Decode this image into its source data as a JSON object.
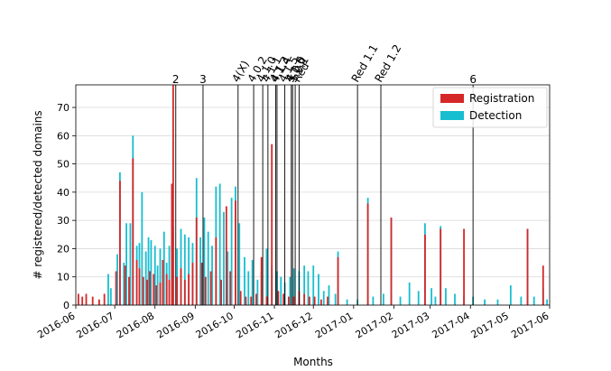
{
  "chart_data": {
    "type": "bar",
    "xlabel": "Months",
    "ylabel": "# registered/detected domains",
    "xlim": [
      "2016-06-01",
      "2017-06-01"
    ],
    "ylim": [
      0,
      78
    ],
    "grid": "horizontal",
    "legend_position": "top-right",
    "colors": {
      "Registration": "#d62728",
      "Detection": "#17becf"
    },
    "x_ticks": [
      "2016-06",
      "2016-07",
      "2016-08",
      "2016-09",
      "2016-10",
      "2016-11",
      "2016-12",
      "2017-01",
      "2017-02",
      "2017-03",
      "2017-04",
      "2017-05",
      "2017-06"
    ],
    "y_ticks": [
      0,
      10,
      20,
      30,
      40,
      50,
      60,
      70
    ],
    "series": [
      {
        "name": "Detection",
        "points": [
          [
            "2016-06-26",
            11
          ],
          [
            "2016-06-28",
            6
          ],
          [
            "2016-07-03",
            18
          ],
          [
            "2016-07-05",
            47
          ],
          [
            "2016-07-08",
            15
          ],
          [
            "2016-07-10",
            29
          ],
          [
            "2016-07-13",
            29
          ],
          [
            "2016-07-15",
            60
          ],
          [
            "2016-07-18",
            21
          ],
          [
            "2016-07-20",
            22
          ],
          [
            "2016-07-22",
            40
          ],
          [
            "2016-07-25",
            19
          ],
          [
            "2016-07-27",
            24
          ],
          [
            "2016-07-29",
            23
          ],
          [
            "2016-08-01",
            21
          ],
          [
            "2016-08-03",
            14
          ],
          [
            "2016-08-05",
            20
          ],
          [
            "2016-08-08",
            26
          ],
          [
            "2016-08-10",
            15
          ],
          [
            "2016-08-12",
            21
          ],
          [
            "2016-08-15",
            28
          ],
          [
            "2016-08-18",
            20
          ],
          [
            "2016-08-21",
            27
          ],
          [
            "2016-08-24",
            25
          ],
          [
            "2016-08-27",
            24
          ],
          [
            "2016-08-30",
            22
          ],
          [
            "2016-09-02",
            45
          ],
          [
            "2016-09-05",
            24
          ],
          [
            "2016-09-08",
            31
          ],
          [
            "2016-09-11",
            26
          ],
          [
            "2016-09-14",
            21
          ],
          [
            "2016-09-17",
            42
          ],
          [
            "2016-09-20",
            43
          ],
          [
            "2016-09-23",
            33
          ],
          [
            "2016-09-26",
            19
          ],
          [
            "2016-09-29",
            38
          ],
          [
            "2016-10-02",
            42
          ],
          [
            "2016-10-05",
            29
          ],
          [
            "2016-10-09",
            17
          ],
          [
            "2016-10-12",
            12
          ],
          [
            "2016-10-15",
            16
          ],
          [
            "2016-10-19",
            9
          ],
          [
            "2016-10-22",
            12
          ],
          [
            "2016-10-26",
            20
          ],
          [
            "2016-10-30",
            14
          ],
          [
            "2016-11-03",
            12
          ],
          [
            "2016-11-06",
            10
          ],
          [
            "2016-11-09",
            8
          ],
          [
            "2016-11-13",
            10
          ],
          [
            "2016-11-16",
            13
          ],
          [
            "2016-11-20",
            12
          ],
          [
            "2016-11-24",
            14
          ],
          [
            "2016-11-27",
            12
          ],
          [
            "2016-12-01",
            14
          ],
          [
            "2016-12-05",
            11
          ],
          [
            "2016-12-09",
            5
          ],
          [
            "2016-12-13",
            7
          ],
          [
            "2016-12-18",
            4
          ],
          [
            "2016-12-20",
            19
          ],
          [
            "2016-12-27",
            2
          ],
          [
            "2017-01-04",
            2
          ],
          [
            "2017-01-12",
            38
          ],
          [
            "2017-01-16",
            3
          ],
          [
            "2017-01-24",
            4
          ],
          [
            "2017-01-30",
            31
          ],
          [
            "2017-02-06",
            3
          ],
          [
            "2017-02-13",
            8
          ],
          [
            "2017-02-20",
            5
          ],
          [
            "2017-02-25",
            29
          ],
          [
            "2017-03-02",
            6
          ],
          [
            "2017-03-05",
            3
          ],
          [
            "2017-03-09",
            28
          ],
          [
            "2017-03-13",
            6
          ],
          [
            "2017-03-20",
            4
          ],
          [
            "2017-03-27",
            3
          ],
          [
            "2017-04-03",
            3
          ],
          [
            "2017-04-12",
            2
          ],
          [
            "2017-04-22",
            2
          ],
          [
            "2017-05-02",
            7
          ],
          [
            "2017-05-10",
            3
          ],
          [
            "2017-05-15",
            27
          ],
          [
            "2017-05-20",
            3
          ],
          [
            "2017-05-27",
            6
          ],
          [
            "2017-05-30",
            2
          ]
        ]
      },
      {
        "name": "Registration",
        "points": [
          [
            "2016-06-03",
            4
          ],
          [
            "2016-06-06",
            3
          ],
          [
            "2016-06-09",
            4
          ],
          [
            "2016-06-14",
            3
          ],
          [
            "2016-06-19",
            2
          ],
          [
            "2016-06-23",
            4
          ],
          [
            "2016-07-02",
            12
          ],
          [
            "2016-07-05",
            44
          ],
          [
            "2016-07-09",
            14
          ],
          [
            "2016-07-12",
            10
          ],
          [
            "2016-07-15",
            52
          ],
          [
            "2016-07-18",
            16
          ],
          [
            "2016-07-20",
            13
          ],
          [
            "2016-07-23",
            10
          ],
          [
            "2016-07-26",
            9
          ],
          [
            "2016-07-28",
            12
          ],
          [
            "2016-07-31",
            11
          ],
          [
            "2016-08-02",
            7
          ],
          [
            "2016-08-05",
            8
          ],
          [
            "2016-08-07",
            16
          ],
          [
            "2016-08-10",
            11
          ],
          [
            "2016-08-12",
            9
          ],
          [
            "2016-08-14",
            43
          ],
          [
            "2016-08-15",
            78
          ],
          [
            "2016-08-18",
            10
          ],
          [
            "2016-08-21",
            13
          ],
          [
            "2016-08-24",
            9
          ],
          [
            "2016-08-27",
            11
          ],
          [
            "2016-08-30",
            15
          ],
          [
            "2016-09-02",
            31
          ],
          [
            "2016-09-06",
            15
          ],
          [
            "2016-09-09",
            10
          ],
          [
            "2016-09-13",
            12
          ],
          [
            "2016-09-17",
            24
          ],
          [
            "2016-09-21",
            9
          ],
          [
            "2016-09-25",
            35
          ],
          [
            "2016-09-28",
            12
          ],
          [
            "2016-10-02",
            37
          ],
          [
            "2016-10-06",
            5
          ],
          [
            "2016-10-10",
            3
          ],
          [
            "2016-10-14",
            3
          ],
          [
            "2016-10-18",
            4
          ],
          [
            "2016-10-22",
            17
          ],
          [
            "2016-10-26",
            3
          ],
          [
            "2016-10-30",
            57
          ],
          [
            "2016-11-04",
            5
          ],
          [
            "2016-11-08",
            4
          ],
          [
            "2016-11-12",
            3
          ],
          [
            "2016-11-16",
            3
          ],
          [
            "2016-11-20",
            5
          ],
          [
            "2016-11-24",
            4
          ],
          [
            "2016-11-28",
            3
          ],
          [
            "2016-12-02",
            3
          ],
          [
            "2016-12-07",
            2
          ],
          [
            "2016-12-12",
            3
          ],
          [
            "2016-12-20",
            17
          ],
          [
            "2017-01-12",
            36
          ],
          [
            "2017-01-30",
            31
          ],
          [
            "2017-02-25",
            25
          ],
          [
            "2017-03-09",
            27
          ],
          [
            "2017-03-27",
            27
          ],
          [
            "2017-05-15",
            27
          ],
          [
            "2017-05-27",
            14
          ]
        ]
      }
    ],
    "vlines": [
      {
        "date": "2016-08-17",
        "label": "2"
      },
      {
        "date": "2016-09-07",
        "label": "3"
      },
      {
        "date": "2016-10-04",
        "label": "4(X)"
      },
      {
        "date": "2016-10-16",
        "label": "4.0.2"
      },
      {
        "date": "2016-10-23",
        "label": "4.1.0"
      },
      {
        "date": "2016-10-27",
        "label": "4.1.1"
      },
      {
        "date": "2016-11-02",
        "label": "4.1.3"
      },
      {
        "date": "2016-11-03",
        "label": "4.1.4"
      },
      {
        "date": "2016-11-09",
        "label": "4.1.5"
      },
      {
        "date": "2016-11-14",
        "label": "4.1.6"
      },
      {
        "date": "2016-11-15",
        "label": "5.0.0"
      },
      {
        "date": "2016-11-17",
        "label": "5.0.1"
      },
      {
        "date": "2016-11-20",
        "label": "Red"
      },
      {
        "date": "2017-01-04",
        "label": "Red 1.1"
      },
      {
        "date": "2017-01-22",
        "label": "Red 1.2"
      },
      {
        "date": "2017-04-03",
        "label": "6"
      }
    ]
  }
}
